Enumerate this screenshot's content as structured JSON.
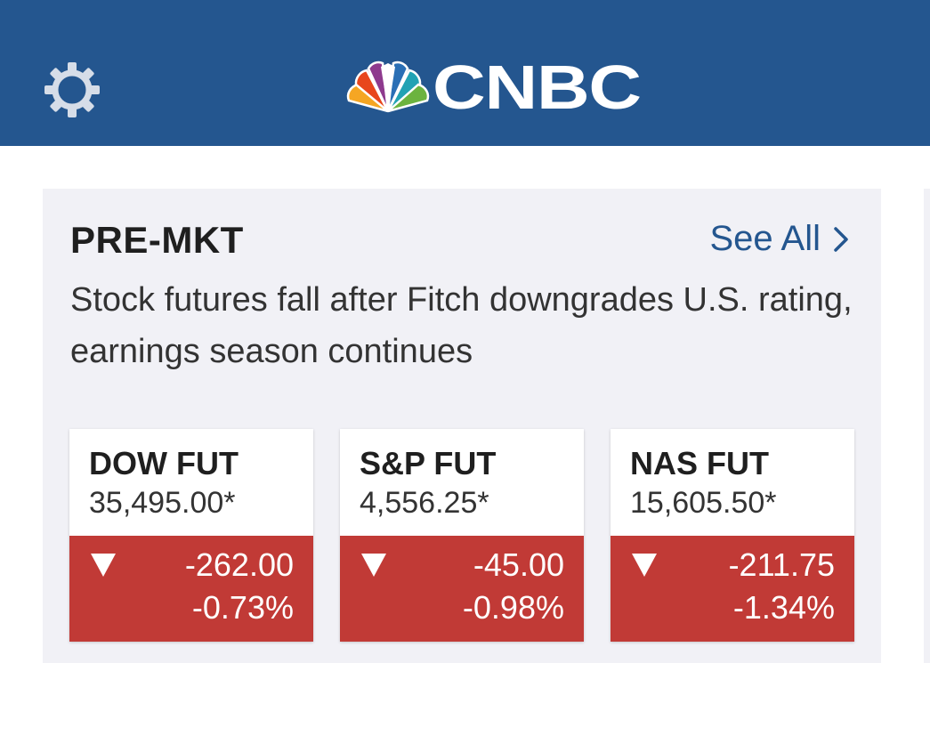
{
  "header": {
    "brand_text": "CNBC",
    "gear_icon": "gear-icon",
    "logo_icon": "nbc-peacock-icon",
    "bg_color": "#24568f"
  },
  "premarket": {
    "section_label": "PRE-MKT",
    "see_all_label": "See All",
    "see_all_icon": "chevron-right-icon",
    "headline": "Stock futures fall after Fitch downgrades U.S. rating, earnings season continues",
    "accent_color": "#24568f",
    "down_color": "#c13a36"
  },
  "quotes": [
    {
      "name": "DOW FUT",
      "price": "35,495.00*",
      "change": "-262.00",
      "percent": "-0.73%",
      "direction": "down",
      "direction_icon": "triangle-down-icon"
    },
    {
      "name": "S&P FUT",
      "price": "4,556.25*",
      "change": "-45.00",
      "percent": "-0.98%",
      "direction": "down",
      "direction_icon": "triangle-down-icon"
    },
    {
      "name": "NAS FUT",
      "price": "15,605.50*",
      "change": "-211.75",
      "percent": "-1.34%",
      "direction": "down",
      "direction_icon": "triangle-down-icon"
    }
  ]
}
